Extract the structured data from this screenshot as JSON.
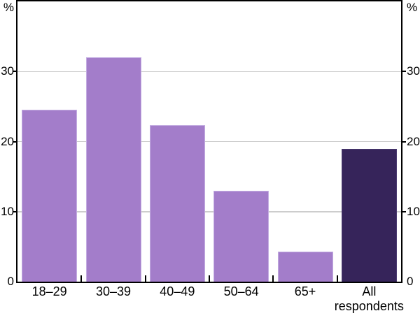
{
  "chart_data": {
    "type": "bar",
    "title": "",
    "unit_label": "%",
    "categories": [
      "18–29",
      "30–39",
      "40–49",
      "50–64",
      "65+",
      "All\nrespondents"
    ],
    "values": [
      24.5,
      32,
      22.3,
      13,
      4.3,
      19
    ],
    "highlight_index": 5,
    "ylim": [
      0,
      40
    ],
    "yticks": [
      0,
      10,
      20,
      30
    ],
    "grid": true,
    "legend": "none",
    "colors": {
      "bar": "#a37dca",
      "bar_edge": "#c4aee2",
      "highlight": "#36245a",
      "highlight_edge": "#4b3a71",
      "gridline": "#cdcdcd",
      "axis": "#000000",
      "text": "#000000",
      "background": "#ffffff"
    }
  }
}
